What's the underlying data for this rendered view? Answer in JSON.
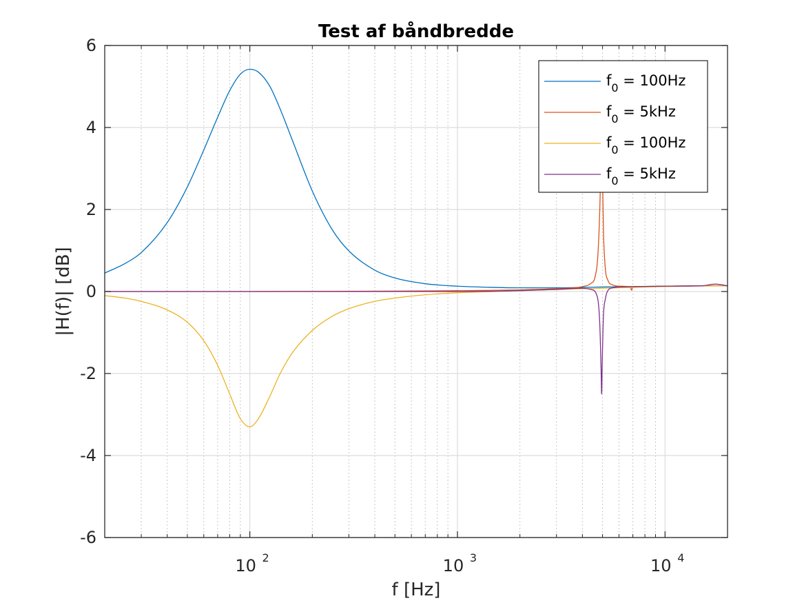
{
  "chart_data": {
    "type": "line",
    "title": "Test af båndbredde",
    "xlabel": "f [Hz]",
    "ylabel": "|H(f)| [dB]",
    "xscale": "log",
    "xlim": [
      20,
      20000
    ],
    "ylim": [
      -6,
      6
    ],
    "yticks": [
      -6,
      -4,
      -2,
      0,
      2,
      4,
      6
    ],
    "ytick_labels": [
      "-6",
      "-4",
      "-2",
      "0",
      "2",
      "4",
      "6"
    ],
    "xticks": [
      100,
      1000,
      10000
    ],
    "xtick_labels": [
      {
        "base": "10",
        "exp": "2"
      },
      {
        "base": "10",
        "exp": "3"
      },
      {
        "base": "10",
        "exp": "4"
      }
    ],
    "grid": true,
    "legend_position": "top-right",
    "series": [
      {
        "name": {
          "base": "f",
          "sub": "0",
          "rest": " = 100Hz"
        },
        "color": "#0072BD",
        "x": [
          20,
          25,
          30,
          40,
          50,
          60,
          70,
          80,
          90,
          100,
          110,
          125,
          140,
          160,
          200,
          250,
          300,
          400,
          500,
          700,
          1000,
          1500,
          2000,
          3000,
          4000,
          5000,
          7000,
          10000,
          15000,
          20000
        ],
        "y": [
          0.45,
          0.68,
          0.95,
          1.68,
          2.55,
          3.45,
          4.25,
          4.9,
          5.3,
          5.42,
          5.35,
          5.0,
          4.45,
          3.7,
          2.45,
          1.5,
          0.99,
          0.52,
          0.33,
          0.19,
          0.13,
          0.1,
          0.09,
          0.09,
          0.1,
          0.11,
          0.12,
          0.13,
          0.14,
          0.14
        ]
      },
      {
        "name": {
          "base": "f",
          "sub": "0",
          "rest": " = 5kHz"
        },
        "color": "#D95319",
        "x": [
          20,
          100,
          500,
          1000,
          2000,
          3000,
          4000,
          4400,
          4600,
          4750,
          4850,
          4900,
          4950,
          5000,
          5050,
          5150,
          5300,
          5600,
          6000,
          6800,
          6900,
          7000,
          8000,
          10000,
          15000,
          20000
        ],
        "y": [
          0.0,
          0.0,
          0.01,
          0.02,
          0.04,
          0.07,
          0.12,
          0.2,
          0.35,
          0.9,
          2.0,
          2.9,
          3.5,
          2.8,
          1.5,
          0.6,
          0.28,
          0.16,
          0.13,
          0.11,
          0.03,
          0.12,
          0.12,
          0.13,
          0.14,
          0.14
        ]
      },
      {
        "name": {
          "base": "f",
          "sub": "0",
          "rest": " = 100Hz"
        },
        "color": "#EDB120",
        "x": [
          20,
          25,
          30,
          40,
          50,
          60,
          70,
          80,
          90,
          100,
          110,
          125,
          140,
          160,
          200,
          250,
          300,
          400,
          500,
          700,
          1000,
          1500,
          2000,
          3000,
          5000,
          10000,
          20000
        ],
        "y": [
          -0.1,
          -0.16,
          -0.24,
          -0.45,
          -0.75,
          -1.2,
          -1.8,
          -2.5,
          -3.1,
          -3.3,
          -3.1,
          -2.55,
          -2.0,
          -1.5,
          -0.95,
          -0.6,
          -0.42,
          -0.24,
          -0.16,
          -0.08,
          -0.03,
          0.0,
          0.02,
          0.05,
          0.08,
          0.12,
          0.14
        ]
      },
      {
        "name": {
          "base": "f",
          "sub": "0",
          "rest": " = 5kHz"
        },
        "color": "#7E2F8E",
        "x": [
          20,
          100,
          1000,
          3000,
          4000,
          4400,
          4700,
          4850,
          4920,
          4950,
          4980,
          5050,
          5150,
          5300,
          5600,
          6000,
          7000,
          10000,
          15000,
          17500,
          20000
        ],
        "y": [
          0.0,
          0.0,
          0.0,
          0.05,
          0.08,
          0.05,
          -0.1,
          -0.8,
          -1.9,
          -2.5,
          -1.8,
          -0.6,
          -0.2,
          0.02,
          0.09,
          0.11,
          0.12,
          0.13,
          0.14,
          0.18,
          0.14
        ]
      }
    ]
  }
}
